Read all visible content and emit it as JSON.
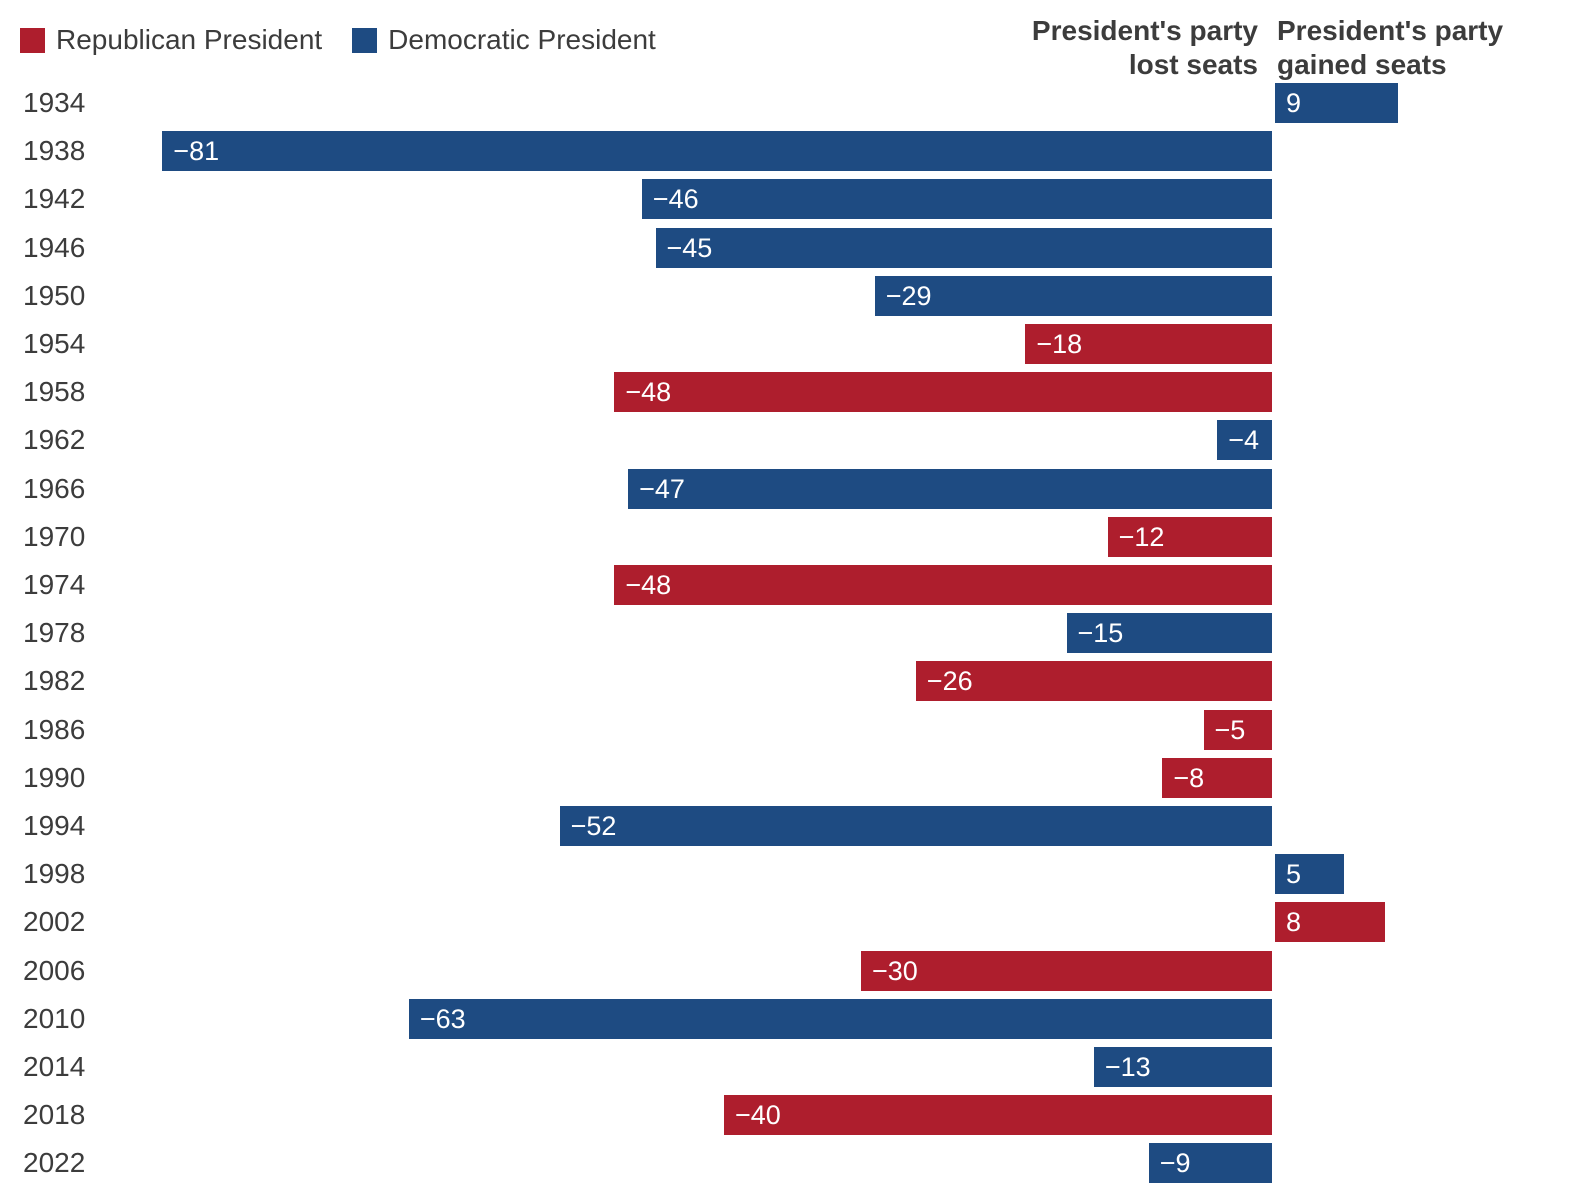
{
  "legend": {
    "items": [
      {
        "label": "Republican President",
        "party": "R"
      },
      {
        "label": "Democratic President",
        "party": "D"
      }
    ]
  },
  "headers": {
    "lost": "President's party\nlost seats",
    "gained": "President's party\ngained seats"
  },
  "colors": {
    "republican": "#AE1E2D",
    "democratic": "#1E4B82",
    "text": "#3C3C3C",
    "bar_label": "#FFFFFF",
    "background": "#FFFFFF"
  },
  "chart_data": {
    "type": "bar",
    "orientation": "horizontal",
    "title": "",
    "xlabel": "",
    "ylabel": "",
    "x_range": [
      -85,
      10
    ],
    "baseline": 0,
    "grid": false,
    "legend_position": "top-left",
    "categories": [
      "1934",
      "1938",
      "1942",
      "1946",
      "1950",
      "1954",
      "1958",
      "1962",
      "1966",
      "1970",
      "1974",
      "1978",
      "1982",
      "1986",
      "1990",
      "1994",
      "1998",
      "2002",
      "2006",
      "2010",
      "2014",
      "2018",
      "2022"
    ],
    "values": [
      9,
      -81,
      -46,
      -45,
      -29,
      -18,
      -48,
      -4,
      -47,
      -12,
      -48,
      -15,
      -26,
      -5,
      -8,
      -52,
      5,
      8,
      -30,
      -63,
      -13,
      -40,
      -9
    ],
    "rows": [
      {
        "year": "1934",
        "value": 9,
        "label": "9",
        "party": "D"
      },
      {
        "year": "1938",
        "value": -81,
        "label": "−81",
        "party": "D"
      },
      {
        "year": "1942",
        "value": -46,
        "label": "−46",
        "party": "D"
      },
      {
        "year": "1946",
        "value": -45,
        "label": "−45",
        "party": "D"
      },
      {
        "year": "1950",
        "value": -29,
        "label": "−29",
        "party": "D"
      },
      {
        "year": "1954",
        "value": -18,
        "label": "−18",
        "party": "R"
      },
      {
        "year": "1958",
        "value": -48,
        "label": "−48",
        "party": "R"
      },
      {
        "year": "1962",
        "value": -4,
        "label": "−4",
        "party": "D"
      },
      {
        "year": "1966",
        "value": -47,
        "label": "−47",
        "party": "D"
      },
      {
        "year": "1970",
        "value": -12,
        "label": "−12",
        "party": "R"
      },
      {
        "year": "1974",
        "value": -48,
        "label": "−48",
        "party": "R"
      },
      {
        "year": "1978",
        "value": -15,
        "label": "−15",
        "party": "D"
      },
      {
        "year": "1982",
        "value": -26,
        "label": "−26",
        "party": "R"
      },
      {
        "year": "1986",
        "value": -5,
        "label": "−5",
        "party": "R"
      },
      {
        "year": "1990",
        "value": -8,
        "label": "−8",
        "party": "R"
      },
      {
        "year": "1994",
        "value": -52,
        "label": "−52",
        "party": "D"
      },
      {
        "year": "1998",
        "value": 5,
        "label": "5",
        "party": "D"
      },
      {
        "year": "2002",
        "value": 8,
        "label": "8",
        "party": "R"
      },
      {
        "year": "2006",
        "value": -30,
        "label": "−30",
        "party": "R"
      },
      {
        "year": "2010",
        "value": -63,
        "label": "−63",
        "party": "D"
      },
      {
        "year": "2014",
        "value": -13,
        "label": "−13",
        "party": "D"
      },
      {
        "year": "2018",
        "value": -40,
        "label": "−40",
        "party": "R"
      },
      {
        "year": "2022",
        "value": -9,
        "label": "−9",
        "party": "D"
      }
    ]
  }
}
